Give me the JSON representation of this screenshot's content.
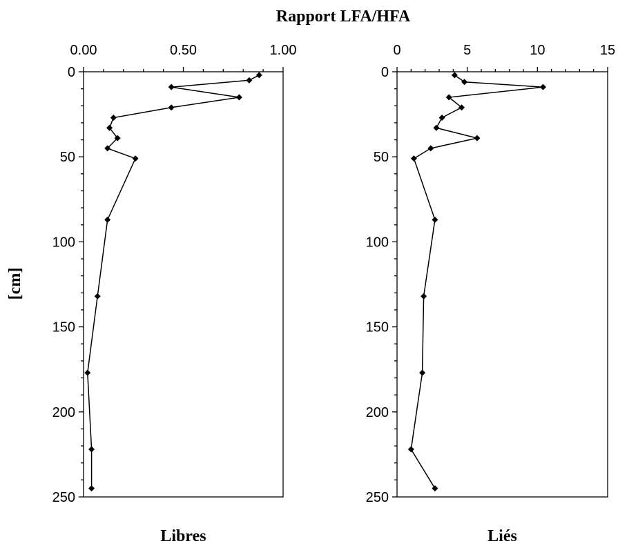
{
  "chart_data": {
    "type": "line",
    "title": "Rapport LFA/HFA",
    "ylabel": "[cm]",
    "ylim": [
      0,
      250
    ],
    "y_reversed": true,
    "y_ticks": [
      "0",
      "50",
      "100",
      "150",
      "200",
      "250"
    ],
    "panels": [
      {
        "name": "Libres",
        "xlim": [
          0,
          1
        ],
        "x_ticks": [
          "0.00",
          "0.50",
          "1.00"
        ],
        "x_tick_values": [
          0,
          0.5,
          1
        ],
        "points": [
          {
            "depth": 2,
            "value": 0.88
          },
          {
            "depth": 5,
            "value": 0.83
          },
          {
            "depth": 9,
            "value": 0.44
          },
          {
            "depth": 15,
            "value": 0.78
          },
          {
            "depth": 21,
            "value": 0.44
          },
          {
            "depth": 27,
            "value": 0.15
          },
          {
            "depth": 33,
            "value": 0.13
          },
          {
            "depth": 39,
            "value": 0.17
          },
          {
            "depth": 45,
            "value": 0.12
          },
          {
            "depth": 51,
            "value": 0.26
          },
          {
            "depth": 87,
            "value": 0.12
          },
          {
            "depth": 132,
            "value": 0.07
          },
          {
            "depth": 177,
            "value": 0.02
          },
          {
            "depth": 222,
            "value": 0.04
          },
          {
            "depth": 245,
            "value": 0.04
          }
        ]
      },
      {
        "name": "Liés",
        "xlim": [
          0,
          15
        ],
        "x_ticks": [
          "0",
          "5",
          "10",
          "15"
        ],
        "x_tick_values": [
          0,
          5,
          10,
          15
        ],
        "points": [
          {
            "depth": 2,
            "value": 4.1
          },
          {
            "depth": 6,
            "value": 4.8
          },
          {
            "depth": 9,
            "value": 10.4
          },
          {
            "depth": 15,
            "value": 3.7
          },
          {
            "depth": 21,
            "value": 4.6
          },
          {
            "depth": 27,
            "value": 3.2
          },
          {
            "depth": 33,
            "value": 2.8
          },
          {
            "depth": 39,
            "value": 5.7
          },
          {
            "depth": 45,
            "value": 2.4
          },
          {
            "depth": 51,
            "value": 1.2
          },
          {
            "depth": 87,
            "value": 2.7
          },
          {
            "depth": 132,
            "value": 1.9
          },
          {
            "depth": 177,
            "value": 1.8
          },
          {
            "depth": 222,
            "value": 1.0
          },
          {
            "depth": 245,
            "value": 2.7
          }
        ]
      }
    ]
  }
}
